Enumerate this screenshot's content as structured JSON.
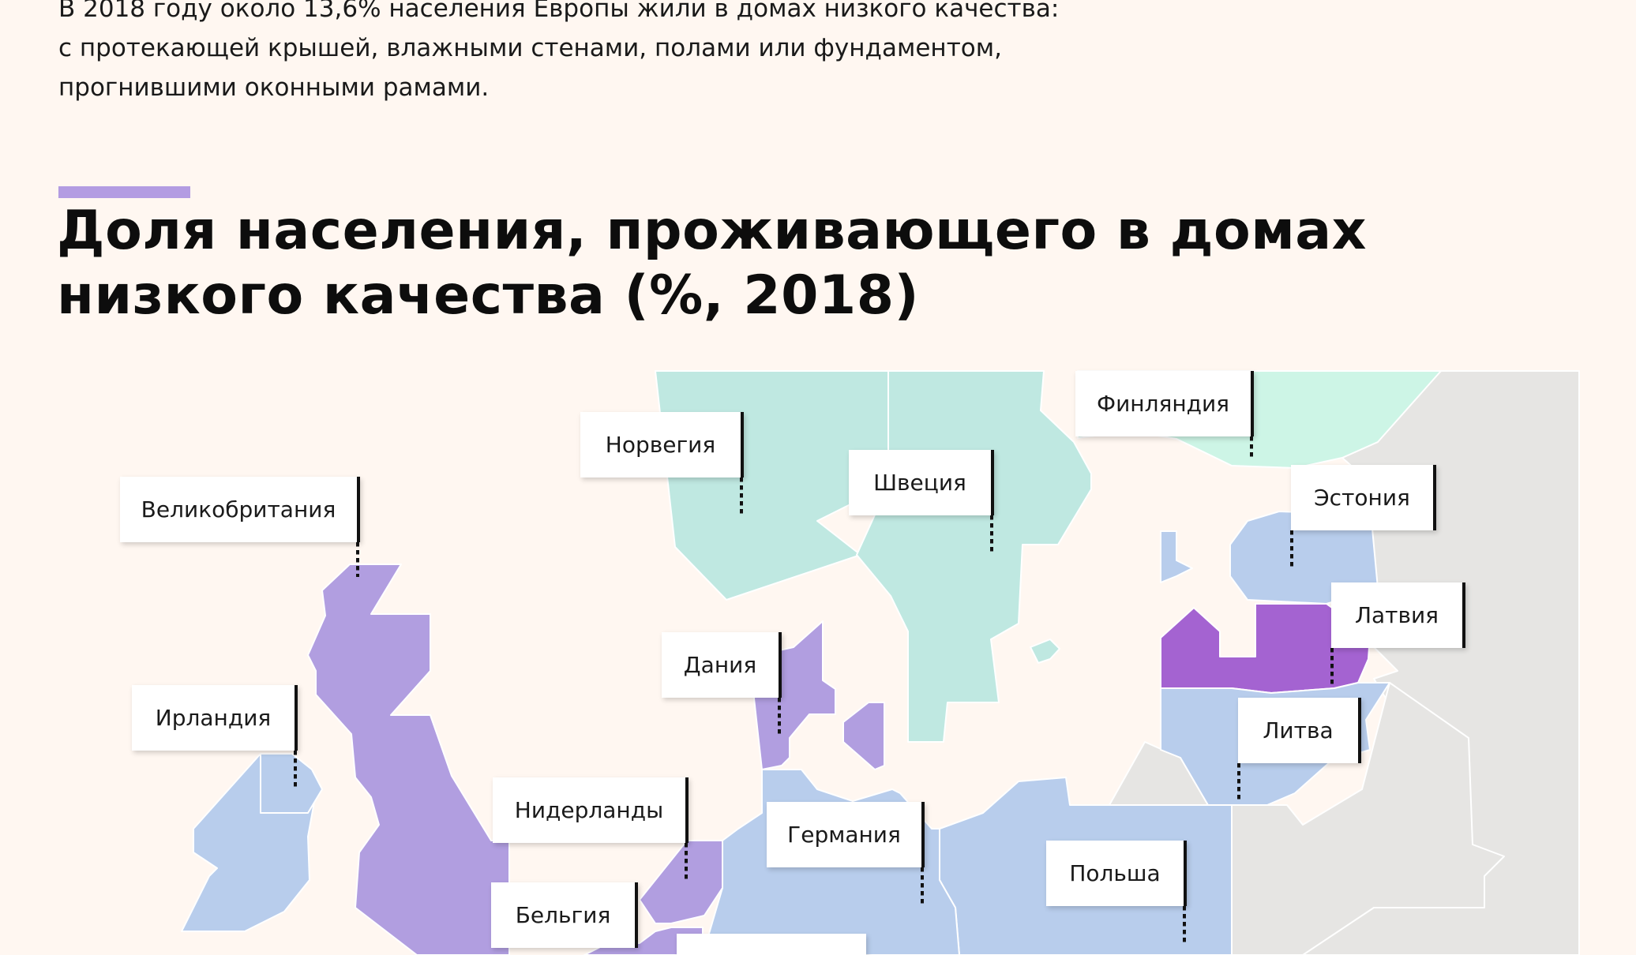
{
  "intro": {
    "line1": "В 2018 году около 13,6% населения Европы жили в домах низкого качества:",
    "line2": "с протекающей крышей, влажными стенами, полами или фундаментом,",
    "line3": "прогнившими оконными рамами."
  },
  "title": {
    "line1": "Доля населения, проживающего в домах",
    "line2": "низкого качества (%, 2018)"
  },
  "colors": {
    "background": "#fff7f1",
    "accent": "#b39ce2",
    "teal": "#bfe8e1",
    "mint": "#cdf5e6",
    "light_blue": "#b8cdec",
    "purple": "#b19ee0",
    "dark_purple": "#a463d1",
    "no_data": "#e6e5e3"
  },
  "countries": {
    "uk": "Великобритания",
    "norway": "Норвегия",
    "sweden": "Швеция",
    "finland": "Финляндия",
    "estonia": "Эстония",
    "latvia": "Латвия",
    "lithuania": "Литва",
    "denmark": "Дания",
    "ireland": "Ирландия",
    "netherlands": "Нидерланды",
    "germany": "Германия",
    "poland": "Польша",
    "belgium": "Бельгия"
  }
}
